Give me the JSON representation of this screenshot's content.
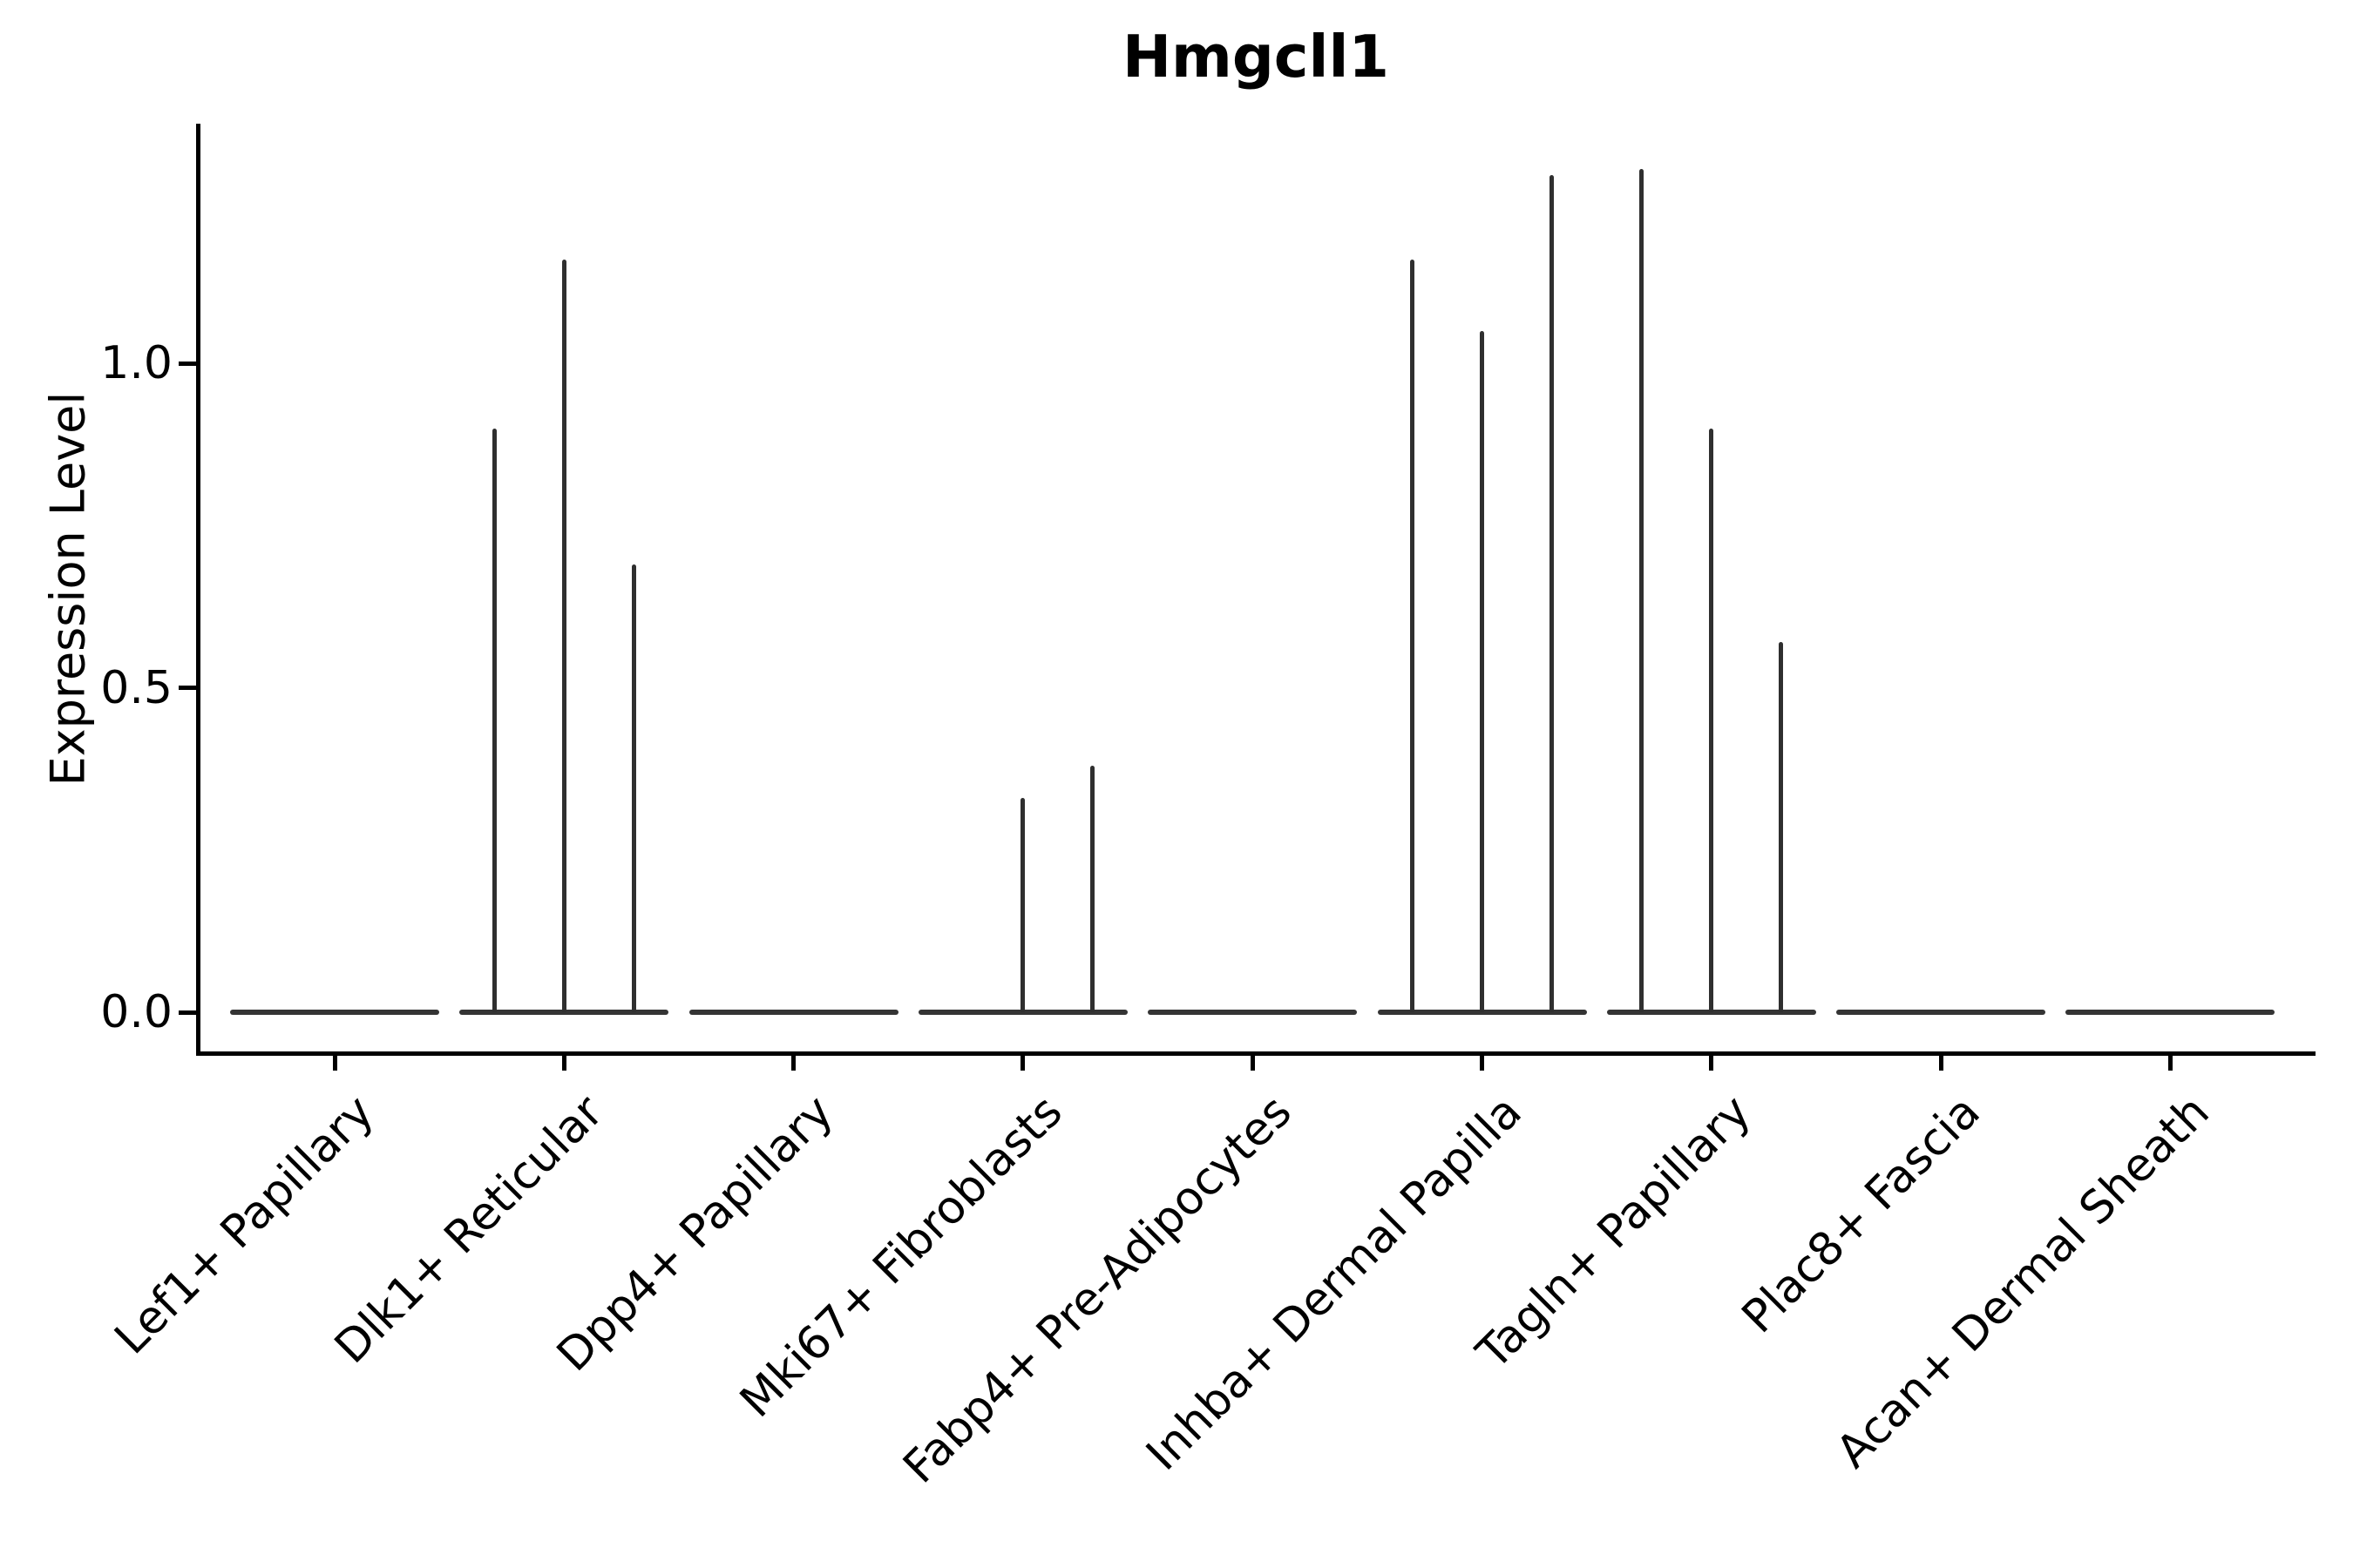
{
  "chart_data": {
    "type": "violin",
    "title": "Hmgcll1",
    "ylabel": "Expression Level",
    "xlabel": "",
    "grid": false,
    "legend": false,
    "ylim": [
      -0.06,
      1.36
    ],
    "yticks": [
      {
        "label": "0.0",
        "value": 0.0
      },
      {
        "label": "0.5",
        "value": 0.5
      },
      {
        "label": "1.0",
        "value": 1.0
      }
    ],
    "categories": [
      "Lef1+ Papillary",
      "Dlk1+ Reticular",
      "Dpp4+ Papillary",
      "Mki67+ Fibroblasts",
      "Fabp4+ Pre-Adipocytes",
      "Inhba+ Dermal Papilla",
      "Tagln+ Papillary",
      "Plac8+ Fascia",
      "Acan+ Dermal Sheath"
    ],
    "series": [
      {
        "name": "Lef1+ Papillary",
        "baseline_value": 0.0,
        "spikes": []
      },
      {
        "name": "Dlk1+ Reticular",
        "baseline_value": 0.0,
        "spikes": [
          {
            "position": -1,
            "value": 0.9
          },
          {
            "position": 0,
            "value": 1.16
          },
          {
            "position": 1,
            "value": 0.69
          }
        ]
      },
      {
        "name": "Dpp4+ Papillary",
        "baseline_value": 0.0,
        "spikes": []
      },
      {
        "name": "Mki67+ Fibroblasts",
        "baseline_value": 0.0,
        "spikes": [
          {
            "position": 0,
            "value": 0.33
          },
          {
            "position": 1,
            "value": 0.38
          }
        ]
      },
      {
        "name": "Fabp4+ Pre-Adipocytes",
        "baseline_value": 0.0,
        "spikes": []
      },
      {
        "name": "Inhba+ Dermal Papilla",
        "baseline_value": 0.0,
        "spikes": [
          {
            "position": -1,
            "value": 1.16
          },
          {
            "position": 0,
            "value": 1.05
          },
          {
            "position": 1,
            "value": 1.29
          }
        ]
      },
      {
        "name": "Tagln+ Papillary",
        "baseline_value": 0.0,
        "spikes": [
          {
            "position": -1,
            "value": 1.3
          },
          {
            "position": 0,
            "value": 0.9
          },
          {
            "position": 1,
            "value": 0.57
          }
        ]
      },
      {
        "name": "Plac8+ Fascia",
        "baseline_value": 0.0,
        "spikes": []
      },
      {
        "name": "Acan+ Dermal Sheath",
        "baseline_value": 0.0,
        "spikes": []
      }
    ],
    "colors": {
      "violin_line": "#2f2f2f",
      "baseline_line": "#343434",
      "axis": "#000000",
      "background": "#ffffff"
    }
  }
}
